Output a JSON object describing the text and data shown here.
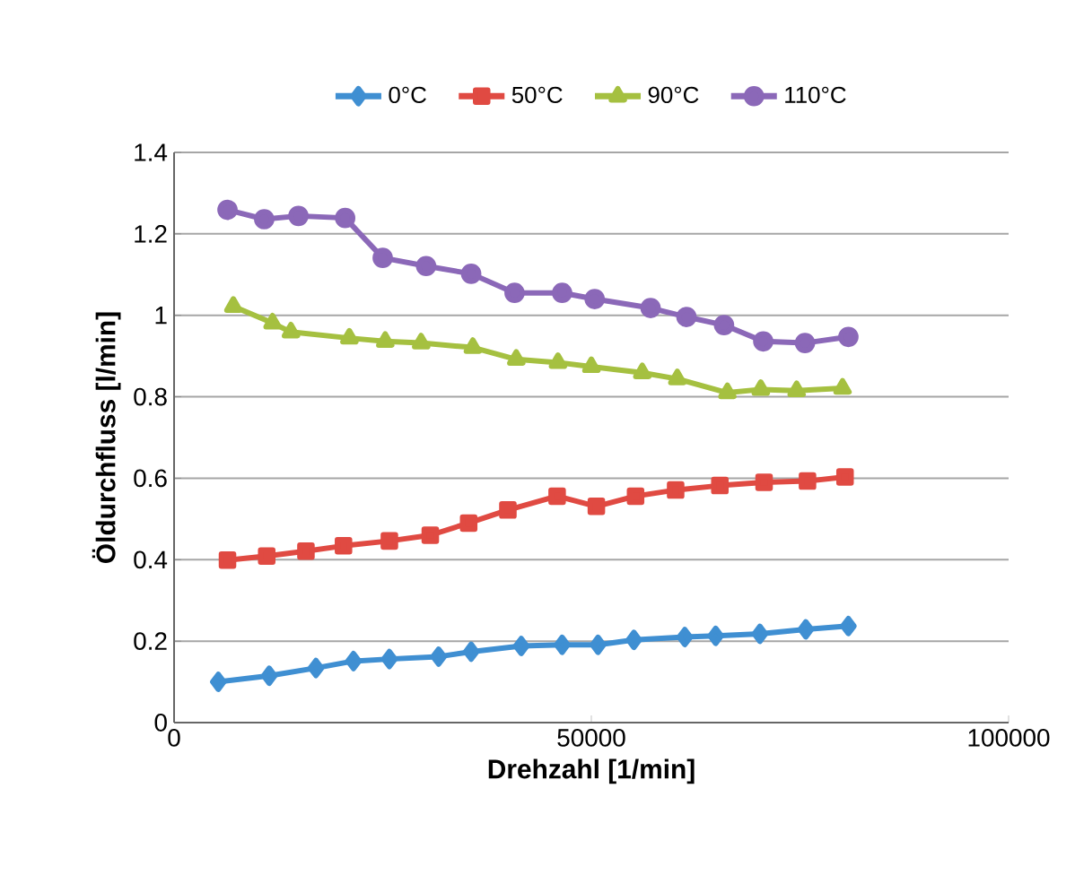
{
  "chart_data": {
    "type": "line",
    "xlabel": "Drehzahl [1/min]",
    "ylabel": "Öldurchfluss [l/min]",
    "xlim": [
      0,
      100000
    ],
    "xticks": [
      0,
      50000,
      100000
    ],
    "ylim": [
      0,
      1.4
    ],
    "yticks": [
      0,
      0.2,
      0.4,
      0.6,
      0.8,
      1,
      1.2,
      1.4
    ],
    "grid": "y",
    "legend": "top",
    "line_style": "solid",
    "series": [
      {
        "name": "0°C",
        "color": "#3f8fd2",
        "marker": "diamond",
        "x": [
          5300,
          11400,
          17000,
          21500,
          25800,
          31700,
          35600,
          41600,
          46500,
          50800,
          55100,
          61200,
          64900,
          70200,
          75700,
          80800
        ],
        "values": [
          0.1,
          0.115,
          0.134,
          0.151,
          0.156,
          0.162,
          0.174,
          0.188,
          0.191,
          0.191,
          0.203,
          0.21,
          0.213,
          0.218,
          0.229,
          0.237
        ]
      },
      {
        "name": "50°C",
        "color": "#e04a42",
        "marker": "square",
        "x": [
          6400,
          11100,
          15800,
          20300,
          25800,
          30700,
          35300,
          40000,
          45900,
          50600,
          55300,
          60100,
          65400,
          70700,
          75900,
          80400
        ],
        "values": [
          0.399,
          0.409,
          0.421,
          0.434,
          0.446,
          0.46,
          0.49,
          0.522,
          0.556,
          0.531,
          0.556,
          0.571,
          0.582,
          0.59,
          0.593,
          0.603
        ]
      },
      {
        "name": "90°C",
        "color": "#a5c040",
        "marker": "triangle",
        "x": [
          7100,
          11800,
          14000,
          21000,
          25300,
          29600,
          35800,
          41000,
          46000,
          50000,
          56100,
          60300,
          66300,
          70300,
          74600,
          80100
        ],
        "values": [
          1.022,
          0.981,
          0.959,
          0.944,
          0.936,
          0.932,
          0.921,
          0.892,
          0.884,
          0.874,
          0.859,
          0.844,
          0.81,
          0.818,
          0.815,
          0.821
        ]
      },
      {
        "name": "110°C",
        "color": "#8b68b8",
        "marker": "circle",
        "x": [
          6400,
          10800,
          14900,
          20500,
          25000,
          30200,
          35600,
          40800,
          46500,
          50400,
          57100,
          61400,
          65900,
          70600,
          75600,
          80800
        ],
        "values": [
          1.259,
          1.236,
          1.244,
          1.239,
          1.141,
          1.121,
          1.102,
          1.055,
          1.055,
          1.04,
          1.018,
          0.996,
          0.976,
          0.936,
          0.932,
          0.947
        ]
      }
    ]
  }
}
